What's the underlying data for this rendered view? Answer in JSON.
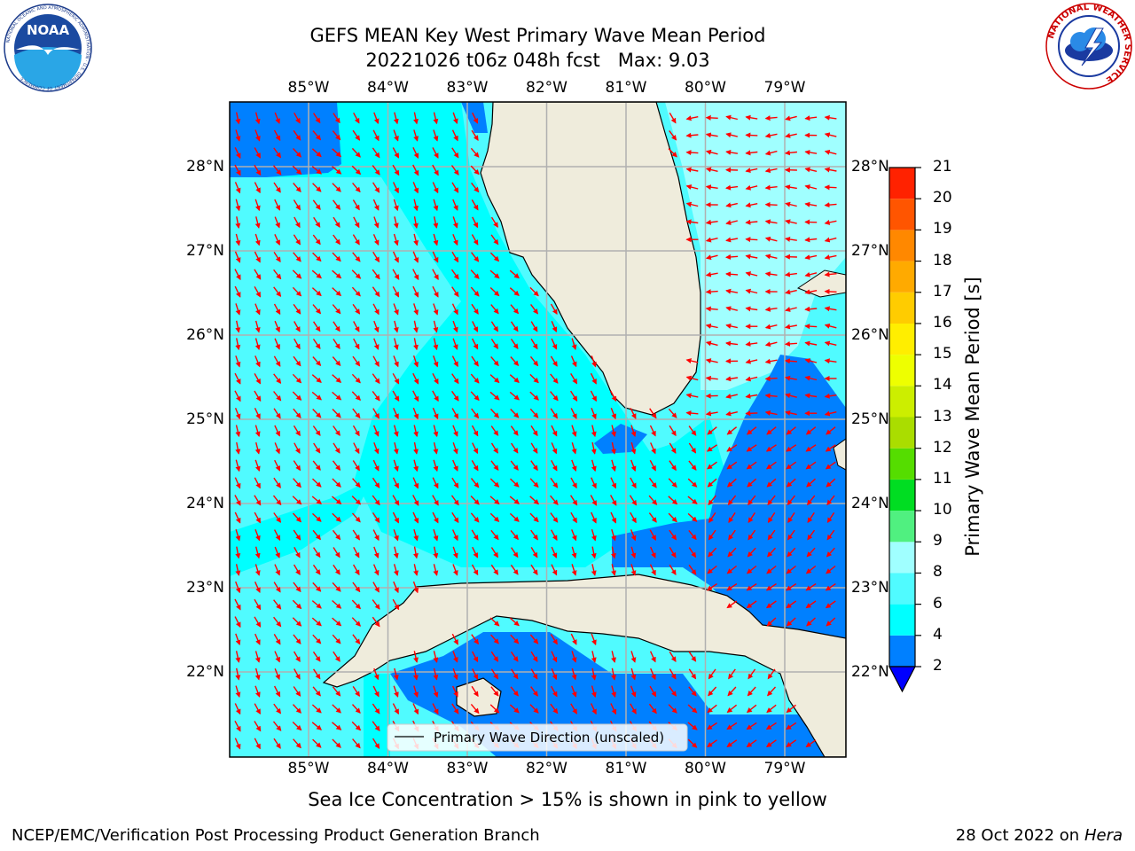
{
  "header": {
    "title_line1": "GEFS MEAN Key West Primary Wave Mean Period",
    "title_line2": "20221026 t06z 048h fcst   Max: 9.03"
  },
  "logos": {
    "noaa_text": "NOAA",
    "noaa_ring": "NATIONAL OCEANIC AND ATMOSPHERIC ADMINISTRATION · U.S. DEPARTMENT OF COMMERCE",
    "nws_ring": "NATIONAL WEATHER SERVICE"
  },
  "map": {
    "lon_labels": [
      "85°W",
      "84°W",
      "83°W",
      "82°W",
      "81°W",
      "80°W",
      "79°W"
    ],
    "lat_labels": [
      "28°N",
      "27°N",
      "26°N",
      "25°N",
      "24°N",
      "23°N",
      "22°N"
    ],
    "legend_label": "Primary Wave Direction (unscaled)",
    "arrow_color": "#ff0000",
    "land_color": "#efecdc",
    "grid_color": "#b0b0b0"
  },
  "colorbar": {
    "label": "Primary Wave Mean Period [s]",
    "ticks": [
      "2",
      "4",
      "6",
      "8",
      "9",
      "10",
      "11",
      "12",
      "13",
      "14",
      "15",
      "16",
      "17",
      "18",
      "19",
      "20",
      "21"
    ],
    "bins": [
      {
        "from": 2,
        "to": 4,
        "color": "#0080ff"
      },
      {
        "from": 4,
        "to": 6,
        "color": "#00ffff"
      },
      {
        "from": 6,
        "to": 8,
        "color": "#50fbff"
      },
      {
        "from": 8,
        "to": 9,
        "color": "#a0ffff"
      },
      {
        "from": 9,
        "to": 10,
        "color": "#50f080"
      },
      {
        "from": 10,
        "to": 11,
        "color": "#00dd22"
      },
      {
        "from": 11,
        "to": 12,
        "color": "#55dd00"
      },
      {
        "from": 12,
        "to": 13,
        "color": "#aadd00"
      },
      {
        "from": 13,
        "to": 14,
        "color": "#ccee00"
      },
      {
        "from": 14,
        "to": 15,
        "color": "#eeff00"
      },
      {
        "from": 15,
        "to": 16,
        "color": "#ffee00"
      },
      {
        "from": 16,
        "to": 17,
        "color": "#ffcc00"
      },
      {
        "from": 17,
        "to": 18,
        "color": "#ffaa00"
      },
      {
        "from": 18,
        "to": 19,
        "color": "#ff8800"
      },
      {
        "from": 19,
        "to": 20,
        "color": "#ff5500"
      },
      {
        "from": 20,
        "to": 21,
        "color": "#ff2200"
      }
    ],
    "under_color": "#0000ff",
    "over_color": "#ff0000"
  },
  "note": "Sea Ice Concentration > 15% is shown in pink to yellow",
  "footer": {
    "left": "NCEP/EMC/Verification Post Processing Product Generation Branch",
    "date": "28 Oct 2022 on ",
    "machine": "Hera"
  }
}
